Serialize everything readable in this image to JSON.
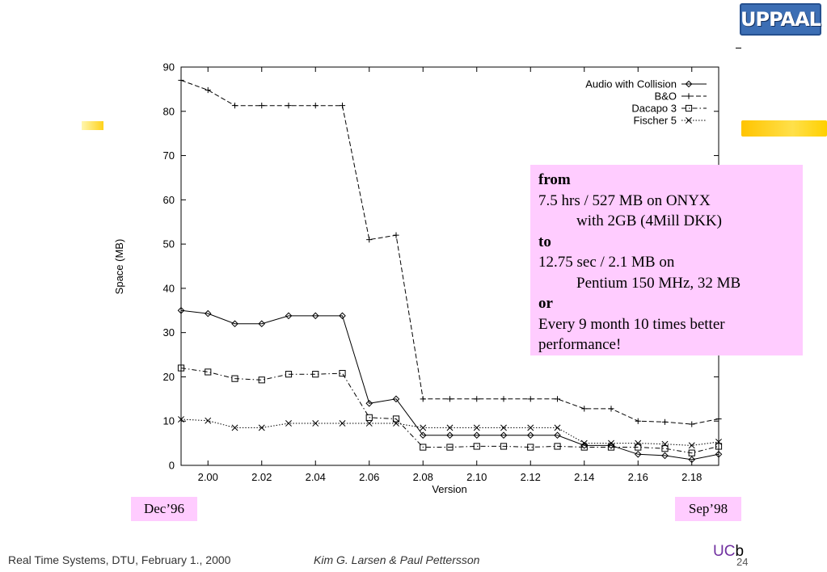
{
  "header": {
    "logo_text": "UPPAAL"
  },
  "chart_data": {
    "type": "line",
    "xlabel": "Version",
    "ylabel": "Space (MB)",
    "xlim": [
      1.99,
      2.19
    ],
    "ylim": [
      0,
      90
    ],
    "x_ticks": [
      "2.00",
      "2.02",
      "2.04",
      "2.06",
      "2.08",
      "2.10",
      "2.12",
      "2.14",
      "2.16",
      "2.18"
    ],
    "y_ticks": [
      "0",
      "10",
      "20",
      "30",
      "40",
      "50",
      "60",
      "70",
      "80",
      "90"
    ],
    "x": [
      1.99,
      2.0,
      2.01,
      2.02,
      2.03,
      2.04,
      2.05,
      2.06,
      2.07,
      2.08,
      2.09,
      2.1,
      2.11,
      2.12,
      2.13,
      2.14,
      2.15,
      2.16,
      2.17,
      2.18,
      2.19
    ],
    "legend_position": "top-right",
    "grid": false,
    "series": [
      {
        "name": "Audio with Collision",
        "marker": "diamond",
        "dash": "solid",
        "values": [
          35,
          34.3,
          32,
          32,
          33.8,
          33.8,
          33.8,
          14,
          15,
          6.8,
          6.8,
          6.8,
          6.8,
          6.8,
          6.8,
          4.5,
          4.5,
          2.5,
          2.2,
          1.3,
          2.5
        ]
      },
      {
        "name": "B&O",
        "marker": "plus",
        "dash": "dashed",
        "values": [
          87,
          84.8,
          81.3,
          81.3,
          81.3,
          81.3,
          81.3,
          51,
          52,
          15,
          15,
          15,
          15,
          15,
          15,
          12.8,
          12.8,
          10,
          9.8,
          9.3,
          10.5
        ]
      },
      {
        "name": "Dacapo 3",
        "marker": "square",
        "dash": "dashdot",
        "values": [
          22,
          21.1,
          19.6,
          19.3,
          20.6,
          20.6,
          20.8,
          10.8,
          10.5,
          4.1,
          4.1,
          4.3,
          4.3,
          4.1,
          4.3,
          4.1,
          4.1,
          4.1,
          3.8,
          2.8,
          4.3
        ]
      },
      {
        "name": "Fischer 5",
        "marker": "cross",
        "dash": "dotted",
        "values": [
          10.4,
          10.1,
          8.5,
          8.5,
          9.5,
          9.5,
          9.5,
          9.5,
          9.5,
          8.5,
          8.5,
          8.5,
          8.5,
          8.5,
          8.5,
          5,
          5,
          5,
          4.8,
          4.5,
          5.3
        ]
      }
    ]
  },
  "note": {
    "from_label": "from",
    "from_line1": "7.5 hrs / 527 MB on ONYX",
    "from_line2": "with 2GB (4Mill DKK)",
    "to_label": "to",
    "to_line1": "12.75 sec / 2.1 MB on",
    "to_line2": "Pentium 150 MHz, 32 MB",
    "or_label": "or",
    "or_line1": "Every 9 month 10 times better",
    "or_line2": "performance!"
  },
  "timeline": {
    "start_label": "Dec’96",
    "end_label": "Sep’98"
  },
  "footer": {
    "course": "Real Time Systems, DTU, February 1., 2000",
    "authors": "Kim G. Larsen & Paul Pettersson",
    "uc_brand": "UC",
    "uc_suffix": "b",
    "page_number": "24"
  },
  "colors": {
    "note_background": "#ffccff",
    "logo_background": "#3c6eb4",
    "uc_brand": "#7030a0"
  }
}
